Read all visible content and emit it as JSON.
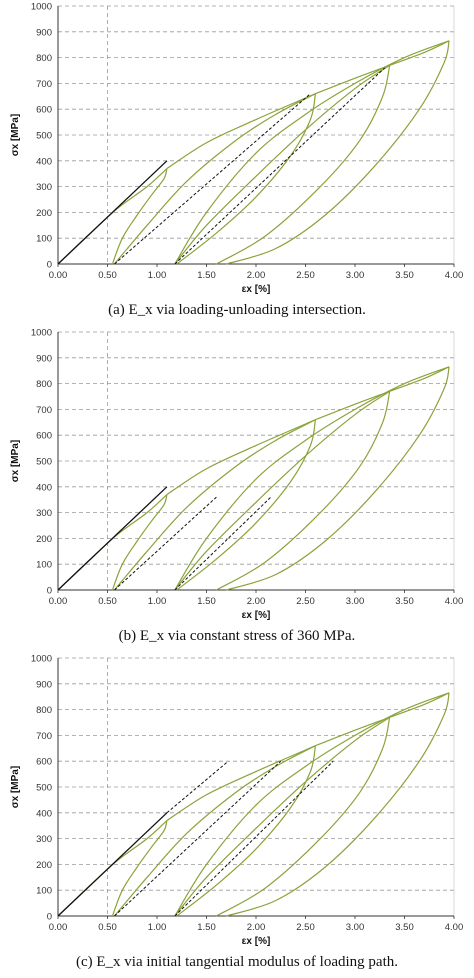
{
  "colors": {
    "cycle": "#8aa33a",
    "modulus_line": "#111111",
    "grid": "#9a9a9a",
    "axis": "#333333"
  },
  "chart_data": [
    {
      "type": "line",
      "caption": "(a) E_x via loading-unloading intersection.",
      "xlabel": "εx [%]",
      "ylabel": "σx [MPa]",
      "xlim": [
        0,
        4
      ],
      "ylim": [
        0,
        1000
      ],
      "xticks": [
        "0.00",
        "0.50",
        "1.00",
        "1.50",
        "2.00",
        "2.50",
        "3.00",
        "3.50",
        "4.00"
      ],
      "yticks": [
        "0",
        "100",
        "200",
        "300",
        "400",
        "500",
        "600",
        "700",
        "800",
        "900",
        "1000"
      ],
      "grid": "horizontal dashed, vertical dashed at 0.50",
      "series": [
        {
          "style": "solid-green",
          "points": [
            [
              0,
              0
            ],
            [
              0.3,
              110
            ],
            [
              0.6,
              215
            ],
            [
              0.9,
              300
            ],
            [
              1.1,
              370
            ]
          ]
        },
        {
          "style": "solid-green",
          "points": [
            [
              1.1,
              370
            ],
            [
              1.07,
              330
            ],
            [
              0.95,
              270
            ],
            [
              0.8,
              190
            ],
            [
              0.65,
              100
            ],
            [
              0.55,
              0
            ]
          ]
        },
        {
          "style": "solid-green",
          "points": [
            [
              0.57,
              0
            ],
            [
              0.9,
              150
            ],
            [
              1.3,
              320
            ],
            [
              1.8,
              480
            ],
            [
              2.2,
              580
            ],
            [
              2.6,
              660
            ]
          ]
        },
        {
          "style": "solid-green",
          "points": [
            [
              2.6,
              660
            ],
            [
              2.55,
              560
            ],
            [
              2.35,
              420
            ],
            [
              2.0,
              260
            ],
            [
              1.6,
              120
            ],
            [
              1.2,
              0
            ]
          ]
        },
        {
          "style": "solid-green",
          "points": [
            [
              1.18,
              0
            ],
            [
              1.5,
              150
            ],
            [
              2.0,
              340
            ],
            [
              2.5,
              520
            ],
            [
              3.0,
              680
            ],
            [
              3.35,
              770
            ]
          ]
        },
        {
          "style": "solid-green",
          "points": [
            [
              3.35,
              770
            ],
            [
              3.28,
              650
            ],
            [
              3.05,
              480
            ],
            [
              2.65,
              300
            ],
            [
              2.1,
              110
            ],
            [
              1.6,
              0
            ]
          ]
        },
        {
          "style": "solid-green",
          "points": [
            [
              1.18,
              0
            ],
            [
              1.5,
              200
            ],
            [
              2.0,
              430
            ],
            [
              2.5,
              580
            ],
            [
              3.0,
              700
            ],
            [
              3.5,
              800
            ],
            [
              3.95,
              865
            ]
          ]
        },
        {
          "style": "solid-green",
          "points": [
            [
              3.95,
              865
            ],
            [
              3.9,
              780
            ],
            [
              3.65,
              600
            ],
            [
              3.2,
              380
            ],
            [
              2.7,
              190
            ],
            [
              2.2,
              60
            ],
            [
              1.7,
              0
            ]
          ]
        },
        {
          "style": "solid-green",
          "points": [
            [
              1.1,
              370
            ],
            [
              1.5,
              470
            ],
            [
              2.0,
              560
            ],
            [
              2.6,
              660
            ]
          ]
        },
        {
          "style": "solid-green",
          "points": [
            [
              2.6,
              660
            ],
            [
              3.0,
              720
            ],
            [
              3.35,
              770
            ]
          ]
        },
        {
          "style": "solid-green",
          "points": [
            [
              3.35,
              770
            ],
            [
              3.7,
              820
            ],
            [
              3.95,
              865
            ]
          ]
        },
        {
          "style": "solid-black",
          "points": [
            [
              0,
              0
            ],
            [
              1.1,
              400
            ]
          ]
        },
        {
          "style": "dashed-black",
          "points": [
            [
              0.57,
              0
            ],
            [
              2.55,
              660
            ]
          ]
        },
        {
          "style": "dashed-black",
          "points": [
            [
              1.18,
              0
            ],
            [
              3.3,
              760
            ]
          ]
        }
      ]
    },
    {
      "type": "line",
      "caption": "(b) E_x via constant stress of 360 MPa.",
      "xlabel": "εx [%]",
      "ylabel": "σx [MPa]",
      "xlim": [
        0,
        4
      ],
      "ylim": [
        0,
        1000
      ],
      "xticks": [
        "0.00",
        "0.50",
        "1.00",
        "1.50",
        "2.00",
        "2.50",
        "3.00",
        "3.50",
        "4.00"
      ],
      "yticks": [
        "0",
        "100",
        "200",
        "300",
        "400",
        "500",
        "600",
        "700",
        "800",
        "900",
        "1000"
      ],
      "grid": "horizontal dashed, vertical dashed at 0.50",
      "series": [
        {
          "style": "solid-green",
          "points": [
            [
              0,
              0
            ],
            [
              0.3,
              110
            ],
            [
              0.6,
              215
            ],
            [
              0.9,
              300
            ],
            [
              1.1,
              370
            ]
          ]
        },
        {
          "style": "solid-green",
          "points": [
            [
              1.1,
              370
            ],
            [
              1.07,
              330
            ],
            [
              0.95,
              270
            ],
            [
              0.8,
              190
            ],
            [
              0.65,
              100
            ],
            [
              0.55,
              0
            ]
          ]
        },
        {
          "style": "solid-green",
          "points": [
            [
              0.57,
              0
            ],
            [
              0.9,
              150
            ],
            [
              1.3,
              320
            ],
            [
              1.8,
              480
            ],
            [
              2.2,
              580
            ],
            [
              2.6,
              660
            ]
          ]
        },
        {
          "style": "solid-green",
          "points": [
            [
              2.6,
              660
            ],
            [
              2.55,
              560
            ],
            [
              2.35,
              420
            ],
            [
              2.0,
              260
            ],
            [
              1.6,
              120
            ],
            [
              1.2,
              0
            ]
          ]
        },
        {
          "style": "solid-green",
          "points": [
            [
              1.18,
              0
            ],
            [
              1.5,
              150
            ],
            [
              2.0,
              340
            ],
            [
              2.5,
              520
            ],
            [
              3.0,
              680
            ],
            [
              3.35,
              770
            ]
          ]
        },
        {
          "style": "solid-green",
          "points": [
            [
              3.35,
              770
            ],
            [
              3.28,
              650
            ],
            [
              3.05,
              480
            ],
            [
              2.65,
              300
            ],
            [
              2.1,
              110
            ],
            [
              1.6,
              0
            ]
          ]
        },
        {
          "style": "solid-green",
          "points": [
            [
              1.18,
              0
            ],
            [
              1.5,
              200
            ],
            [
              2.0,
              430
            ],
            [
              2.5,
              580
            ],
            [
              3.0,
              700
            ],
            [
              3.5,
              800
            ],
            [
              3.95,
              865
            ]
          ]
        },
        {
          "style": "solid-green",
          "points": [
            [
              3.95,
              865
            ],
            [
              3.9,
              780
            ],
            [
              3.65,
              600
            ],
            [
              3.2,
              380
            ],
            [
              2.7,
              190
            ],
            [
              2.2,
              60
            ],
            [
              1.7,
              0
            ]
          ]
        },
        {
          "style": "solid-green",
          "points": [
            [
              1.1,
              370
            ],
            [
              1.5,
              470
            ],
            [
              2.0,
              560
            ],
            [
              2.6,
              660
            ]
          ]
        },
        {
          "style": "solid-green",
          "points": [
            [
              2.6,
              660
            ],
            [
              3.0,
              720
            ],
            [
              3.35,
              770
            ]
          ]
        },
        {
          "style": "solid-green",
          "points": [
            [
              3.35,
              770
            ],
            [
              3.7,
              820
            ],
            [
              3.95,
              865
            ]
          ]
        },
        {
          "style": "solid-black",
          "points": [
            [
              0,
              0
            ],
            [
              1.1,
              400
            ]
          ]
        },
        {
          "style": "dashed-black",
          "points": [
            [
              0.57,
              0
            ],
            [
              1.6,
              360
            ]
          ]
        },
        {
          "style": "dashed-black",
          "points": [
            [
              1.18,
              0
            ],
            [
              2.15,
              360
            ]
          ]
        }
      ]
    },
    {
      "type": "line",
      "caption": "(c) E_x via initial tangential modulus of loading path.",
      "xlabel": "εx [%]",
      "ylabel": "σx [MPa]",
      "xlim": [
        0,
        4
      ],
      "ylim": [
        0,
        1000
      ],
      "xticks": [
        "0.00",
        "0.50",
        "1.00",
        "1.50",
        "2.00",
        "2.50",
        "3.00",
        "3.50",
        "4.00"
      ],
      "yticks": [
        "0",
        "100",
        "200",
        "300",
        "400",
        "500",
        "600",
        "700",
        "800",
        "900",
        "1000"
      ],
      "grid": "horizontal dashed, vertical dashed at 0.50",
      "series": [
        {
          "style": "solid-green",
          "points": [
            [
              0,
              0
            ],
            [
              0.3,
              110
            ],
            [
              0.6,
              215
            ],
            [
              0.9,
              300
            ],
            [
              1.1,
              370
            ]
          ]
        },
        {
          "style": "solid-green",
          "points": [
            [
              1.1,
              370
            ],
            [
              1.07,
              330
            ],
            [
              0.95,
              270
            ],
            [
              0.8,
              190
            ],
            [
              0.65,
              100
            ],
            [
              0.55,
              0
            ]
          ]
        },
        {
          "style": "solid-green",
          "points": [
            [
              0.57,
              0
            ],
            [
              0.9,
              150
            ],
            [
              1.3,
              320
            ],
            [
              1.8,
              480
            ],
            [
              2.2,
              580
            ],
            [
              2.6,
              660
            ]
          ]
        },
        {
          "style": "solid-green",
          "points": [
            [
              2.6,
              660
            ],
            [
              2.55,
              560
            ],
            [
              2.35,
              420
            ],
            [
              2.0,
              260
            ],
            [
              1.6,
              120
            ],
            [
              1.2,
              0
            ]
          ]
        },
        {
          "style": "solid-green",
          "points": [
            [
              1.18,
              0
            ],
            [
              1.5,
              150
            ],
            [
              2.0,
              340
            ],
            [
              2.5,
              520
            ],
            [
              3.0,
              680
            ],
            [
              3.35,
              770
            ]
          ]
        },
        {
          "style": "solid-green",
          "points": [
            [
              3.35,
              770
            ],
            [
              3.28,
              650
            ],
            [
              3.05,
              480
            ],
            [
              2.65,
              300
            ],
            [
              2.1,
              110
            ],
            [
              1.6,
              0
            ]
          ]
        },
        {
          "style": "solid-green",
          "points": [
            [
              1.18,
              0
            ],
            [
              1.5,
              200
            ],
            [
              2.0,
              430
            ],
            [
              2.5,
              580
            ],
            [
              3.0,
              700
            ],
            [
              3.5,
              800
            ],
            [
              3.95,
              865
            ]
          ]
        },
        {
          "style": "solid-green",
          "points": [
            [
              3.95,
              865
            ],
            [
              3.9,
              780
            ],
            [
              3.65,
              600
            ],
            [
              3.2,
              380
            ],
            [
              2.7,
              190
            ],
            [
              2.2,
              60
            ],
            [
              1.7,
              0
            ]
          ]
        },
        {
          "style": "solid-green",
          "points": [
            [
              1.1,
              370
            ],
            [
              1.5,
              470
            ],
            [
              2.0,
              560
            ],
            [
              2.6,
              660
            ]
          ]
        },
        {
          "style": "solid-green",
          "points": [
            [
              2.6,
              660
            ],
            [
              3.0,
              720
            ],
            [
              3.35,
              770
            ]
          ]
        },
        {
          "style": "solid-green",
          "points": [
            [
              3.35,
              770
            ],
            [
              3.7,
              820
            ],
            [
              3.95,
              865
            ]
          ]
        },
        {
          "style": "solid-black",
          "points": [
            [
              0,
              0
            ],
            [
              1.1,
              400
            ]
          ]
        },
        {
          "style": "dashed-black",
          "points": [
            [
              1.1,
              400
            ],
            [
              1.72,
              600
            ]
          ]
        },
        {
          "style": "dashed-black",
          "points": [
            [
              0.57,
              0
            ],
            [
              2.25,
              600
            ]
          ]
        },
        {
          "style": "dashed-black",
          "points": [
            [
              1.18,
              0
            ],
            [
              2.78,
              600
            ]
          ]
        }
      ]
    }
  ]
}
